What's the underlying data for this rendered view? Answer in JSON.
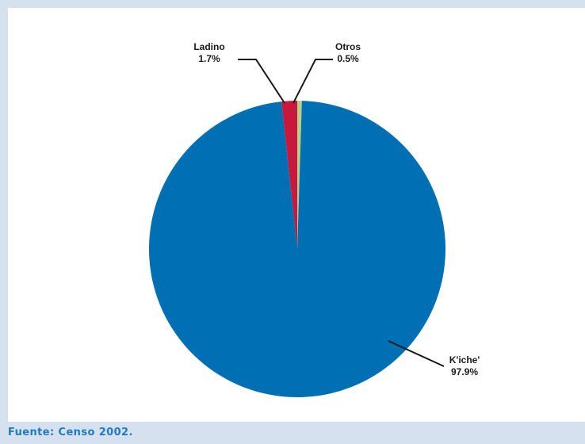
{
  "chart_data": {
    "type": "pie",
    "title": "",
    "slices": [
      {
        "label": "K'iche'",
        "value_label": "97.9%",
        "value": 97.9,
        "color": "#006fb4"
      },
      {
        "label": "Ladino",
        "value_label": "1.7%",
        "value": 1.7,
        "color": "#c8193c"
      },
      {
        "label": "Otros",
        "value_label": "0.5%",
        "value": 0.5,
        "color": "#b5d08a"
      }
    ],
    "legend": "none"
  },
  "footer": {
    "source": "Fuente: Censo 2002."
  }
}
